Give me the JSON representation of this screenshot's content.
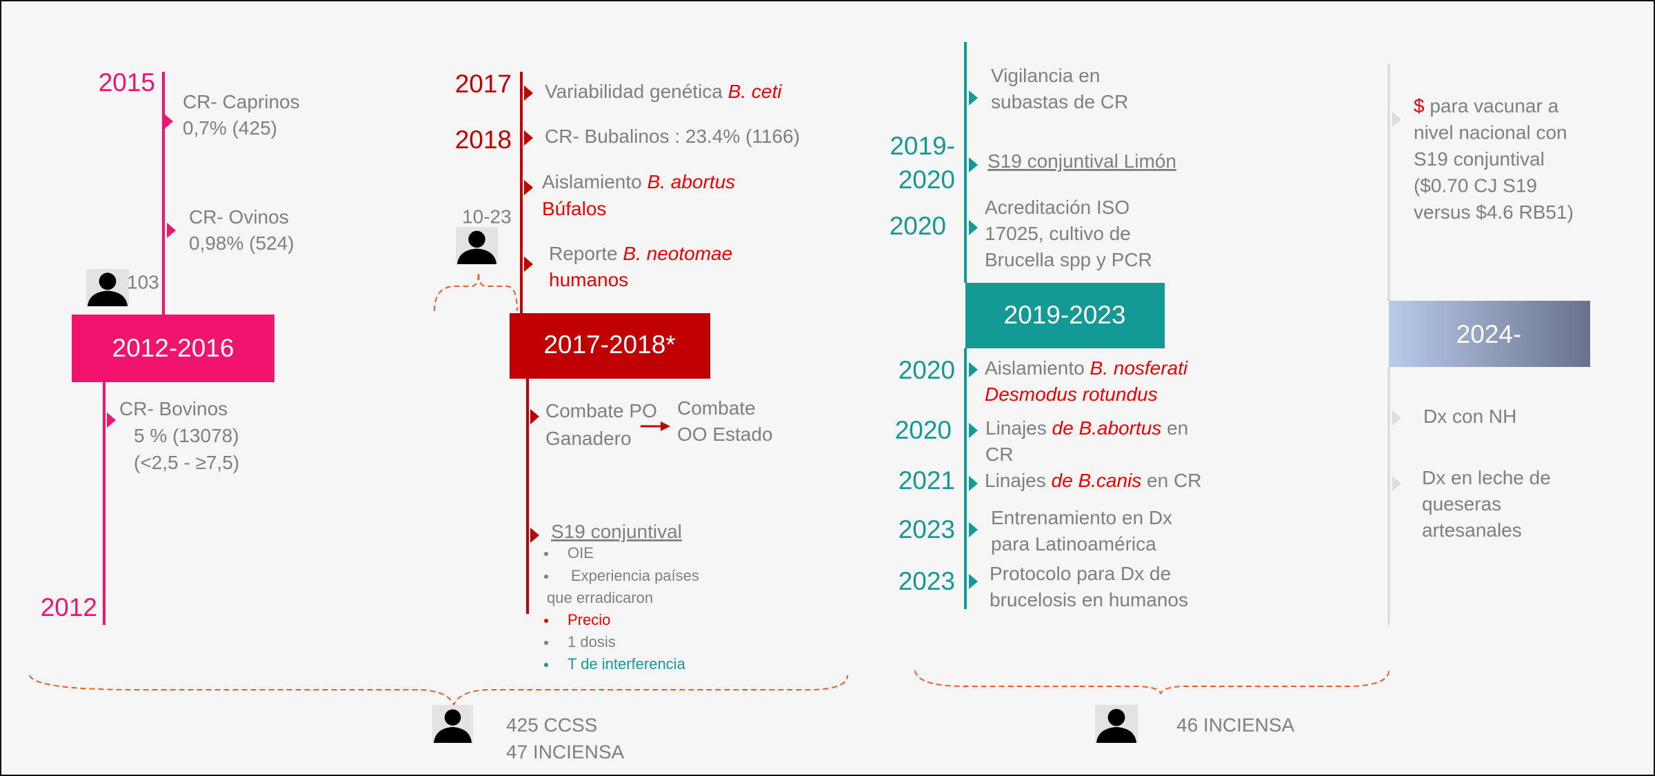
{
  "sections": [
    {
      "period": "2012-2016",
      "staff": "103",
      "years": [
        "2015",
        "2012"
      ],
      "events": [
        [
          [
            "CR- Caprinos"
          ],
          [
            "0,7% (425)"
          ]
        ],
        [
          [
            "CR- Ovinos"
          ],
          [
            "0,98% (524)"
          ]
        ],
        [
          [
            "CR- Bovinos"
          ],
          [
            "5 % (13078)"
          ],
          [
            "(<2,5 - ≥7,5)"
          ]
        ]
      ]
    },
    {
      "period": "2017-2018*",
      "staff": "10-23",
      "years": [
        "2017",
        "2018"
      ],
      "events": [
        [
          [
            "Variabilidad genética ",
            "B. ceti"
          ]
        ],
        [
          [
            "CR- Bubalinos : 23.4% (1166)"
          ]
        ],
        [
          [
            "Aislamiento ",
            "B. abortus"
          ],
          [
            "Búfalos"
          ]
        ],
        [
          [
            "Reporte ",
            "B. neotomae"
          ],
          [
            "humanos"
          ]
        ],
        [
          [
            "Combate PO"
          ],
          [
            "Ganadero"
          ]
        ],
        [
          [
            "Combate"
          ],
          [
            "OO Estado"
          ]
        ],
        [
          [
            "S19 conjuntival"
          ]
        ]
      ],
      "bullets": [
        [
          "OIE"
        ],
        [
          "Experiencia países",
          "que erradicaron"
        ],
        [
          "Precio"
        ],
        [
          "1 dosis"
        ],
        [
          "T de interferencia"
        ]
      ]
    },
    {
      "period": "2019-2023",
      "years": [
        "2019-",
        "2020",
        "2020",
        "2020",
        "2020",
        "2021",
        "2023",
        "2023"
      ],
      "events": [
        [
          [
            "Vigilancia en"
          ],
          [
            "subastas de CR"
          ]
        ],
        [
          [
            "S19 conjuntival Limón"
          ]
        ],
        [
          [
            "Acreditación ISO"
          ],
          [
            "17025, cultivo de"
          ],
          [
            "Brucella spp y PCR"
          ]
        ],
        [
          [
            "Aislamiento ",
            "B. nosferati"
          ],
          [
            "Desmodus rotundus"
          ]
        ],
        [
          [
            "Linajes ",
            "de B.abortus",
            " en"
          ],
          [
            "CR"
          ]
        ],
        [
          [
            "Linajes ",
            "de B.canis",
            " en CR"
          ]
        ],
        [
          [
            "Entrenamiento en Dx"
          ],
          [
            "para Latinoamérica"
          ]
        ],
        [
          [
            "Protocolo para Dx de"
          ],
          [
            "brucelosis en humanos"
          ]
        ]
      ]
    },
    {
      "period": "2024-",
      "events": [
        [
          [
            "$",
            " para vacunar a"
          ],
          [
            "nivel nacional con"
          ],
          [
            "S19 conjuntival"
          ],
          [
            "($0.70 CJ S19"
          ],
          [
            "versus $4.6 RB51)"
          ]
        ],
        [
          [
            "Dx con NH"
          ]
        ],
        [
          [
            "Dx en leche de"
          ],
          [
            "queseras"
          ],
          [
            "artesanales"
          ]
        ]
      ]
    }
  ],
  "summary": [
    [
      "425 CCSS",
      "47 INCIENSA"
    ],
    [
      "46  INCIENSA"
    ]
  ]
}
